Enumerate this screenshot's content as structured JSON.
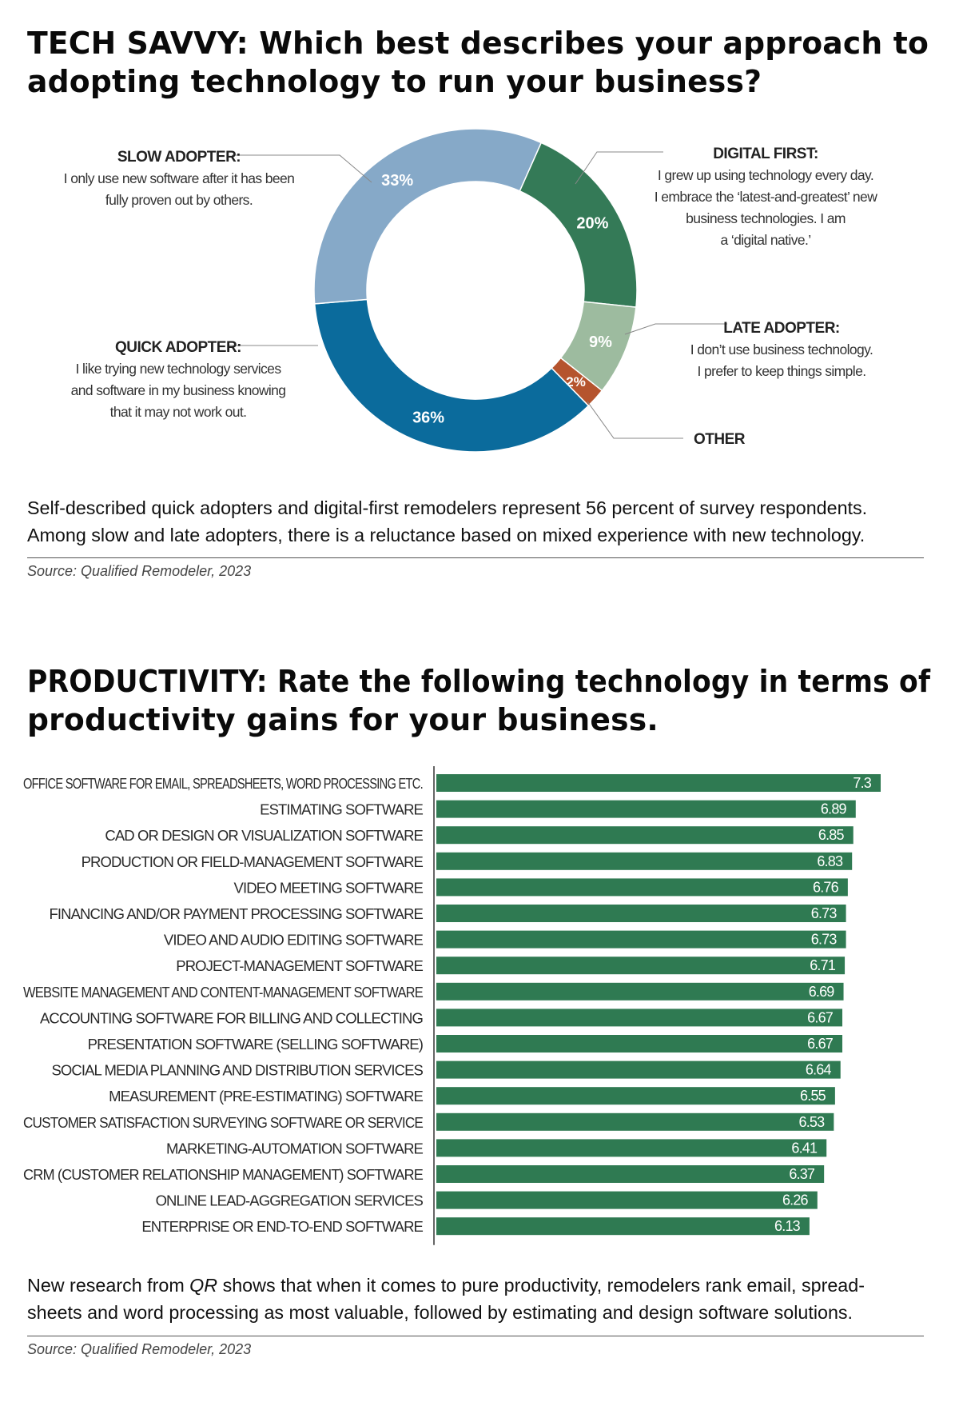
{
  "colors": {
    "slow": "#86a9c8",
    "digital": "#347a57",
    "late": "#9dbb9f",
    "other": "#b5542e",
    "quick": "#0b6b9c",
    "bar": "#2f7a52",
    "text": "#111111",
    "leader": "#888888"
  },
  "section1": {
    "title_lines": [
      "TECH SAVVY: Which best describes your approach to",
      "adopting technology to run your business?"
    ],
    "caption_lines": [
      "Self-described quick adopters and digital-first remodelers represent 56 percent of survey respondents.",
      "Among slow and late adopters, there is a reluctance based on mixed experience with new technology."
    ],
    "source": "Source: Qualified Remodeler, 2023"
  },
  "section2": {
    "title_lines": [
      "PRODUCTIVITY: Rate the following technology in terms of",
      "productivity gains for your business."
    ],
    "caption_prefix": "New research from ",
    "caption_italic": "QR",
    "caption_rest": " shows that when it comes to pure productivity, remodelers rank email, spread-",
    "caption_line2": "sheets and word processing as most valuable, followed by estimating and design software solutions.",
    "source": "Source: Qualified Remodeler, 2023"
  },
  "chart_data": [
    {
      "type": "pie",
      "variant": "donut",
      "title": "TECH SAVVY: Which best describes your approach to adopting technology to run your business?",
      "slices": [
        {
          "name": "DIGITAL FIRST:",
          "value": 20,
          "label": "20%",
          "color_key": "digital",
          "desc": [
            "I grew up using technology every day.",
            "I embrace the ‘latest-and-greatest’ new",
            "business technologies. I am",
            "a ‘digital native.’"
          ]
        },
        {
          "name": "LATE ADOPTER:",
          "value": 9,
          "label": "9%",
          "color_key": "late",
          "desc": [
            "I don’t use business technology.",
            "I prefer to keep things simple."
          ]
        },
        {
          "name": "OTHER",
          "value": 2,
          "label": "2%",
          "color_key": "other",
          "desc": []
        },
        {
          "name": "QUICK ADOPTER:",
          "value": 36,
          "label": "36%",
          "color_key": "quick",
          "desc": [
            "I like trying new technology services",
            "and software in my business knowing",
            "that it may not work out."
          ]
        },
        {
          "name": "SLOW ADOPTER:",
          "value": 33,
          "label": "33%",
          "color_key": "slow",
          "desc": [
            "I only use new software after it has been",
            "fully proven out by others."
          ]
        }
      ]
    },
    {
      "type": "bar",
      "orientation": "horizontal",
      "title": "PRODUCTIVITY: Rate the following technology in terms of productivity gains for your business.",
      "categories": [
        "OFFICE SOFTWARE FOR EMAIL, SPREADSHEETS, WORD PROCESSING ETC.",
        "ESTIMATING SOFTWARE",
        "CAD OR DESIGN OR VISUALIZATION SOFTWARE",
        "PRODUCTION OR FIELD-MANAGEMENT SOFTWARE",
        "VIDEO MEETING SOFTWARE",
        "FINANCING AND/OR PAYMENT PROCESSING SOFTWARE",
        "VIDEO AND AUDIO EDITING SOFTWARE",
        "PROJECT-MANAGEMENT SOFTWARE",
        "WEBSITE MANAGEMENT AND CONTENT-MANAGEMENT SOFTWARE",
        "ACCOUNTING SOFTWARE FOR BILLING AND COLLECTING",
        "PRESENTATION SOFTWARE (SELLING SOFTWARE)",
        "SOCIAL MEDIA PLANNING AND DISTRIBUTION SERVICES",
        "MEASUREMENT (PRE-ESTIMATING) SOFTWARE",
        "CUSTOMER SATISFACTION SURVEYING SOFTWARE OR SERVICE",
        "MARKETING-AUTOMATION SOFTWARE",
        "CRM (CUSTOMER RELATIONSHIP MANAGEMENT) SOFTWARE",
        "ONLINE LEAD-AGGREGATION SERVICES",
        "ENTERPRISE OR END-TO-END SOFTWARE"
      ],
      "values": [
        7.3,
        6.89,
        6.85,
        6.83,
        6.76,
        6.73,
        6.73,
        6.71,
        6.69,
        6.67,
        6.67,
        6.64,
        6.55,
        6.53,
        6.41,
        6.37,
        6.26,
        6.13
      ],
      "value_labels": [
        "7.3",
        "6.89",
        "6.85",
        "6.83",
        "6.76",
        "6.73",
        "6.73",
        "6.71",
        "6.69",
        "6.67",
        "6.67",
        "6.64",
        "6.55",
        "6.53",
        "6.41",
        "6.37",
        "6.26",
        "6.13"
      ],
      "xlim": [
        0,
        7.3
      ]
    }
  ]
}
